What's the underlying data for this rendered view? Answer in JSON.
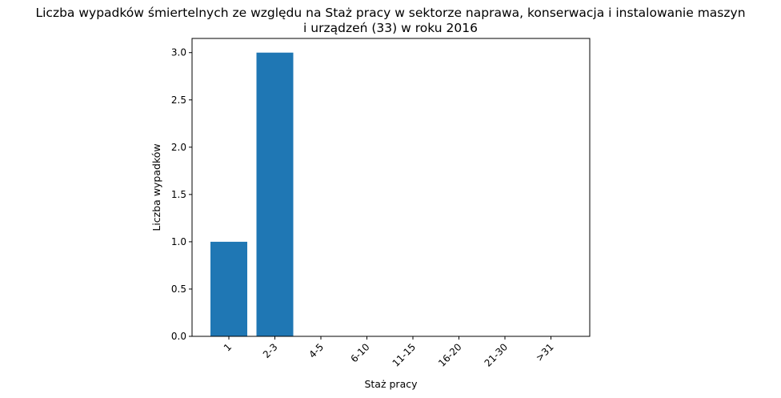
{
  "chart_data": {
    "type": "bar",
    "title_lines": [
      "Liczba wypadków śmiertelnych ze względu na Staż pracy w sektorze naprawa, konserwacja i instalowanie maszyn",
      "i urządzeń  (33) w roku 2016"
    ],
    "xlabel": "Staż pracy",
    "ylabel": "Liczba wypadków",
    "categories": [
      "1",
      "2-3",
      "4-5",
      "6-10",
      "11-15",
      "16-20",
      "21-30",
      ">31"
    ],
    "values": [
      1,
      3,
      0,
      0,
      0,
      0,
      0,
      0
    ],
    "ylim": [
      0,
      3.15
    ],
    "yticks": [
      "0.0",
      "0.5",
      "1.0",
      "1.5",
      "2.0",
      "2.5",
      "3.0"
    ],
    "bar_color": "#1f77b4",
    "grid": false,
    "legend": "none"
  }
}
